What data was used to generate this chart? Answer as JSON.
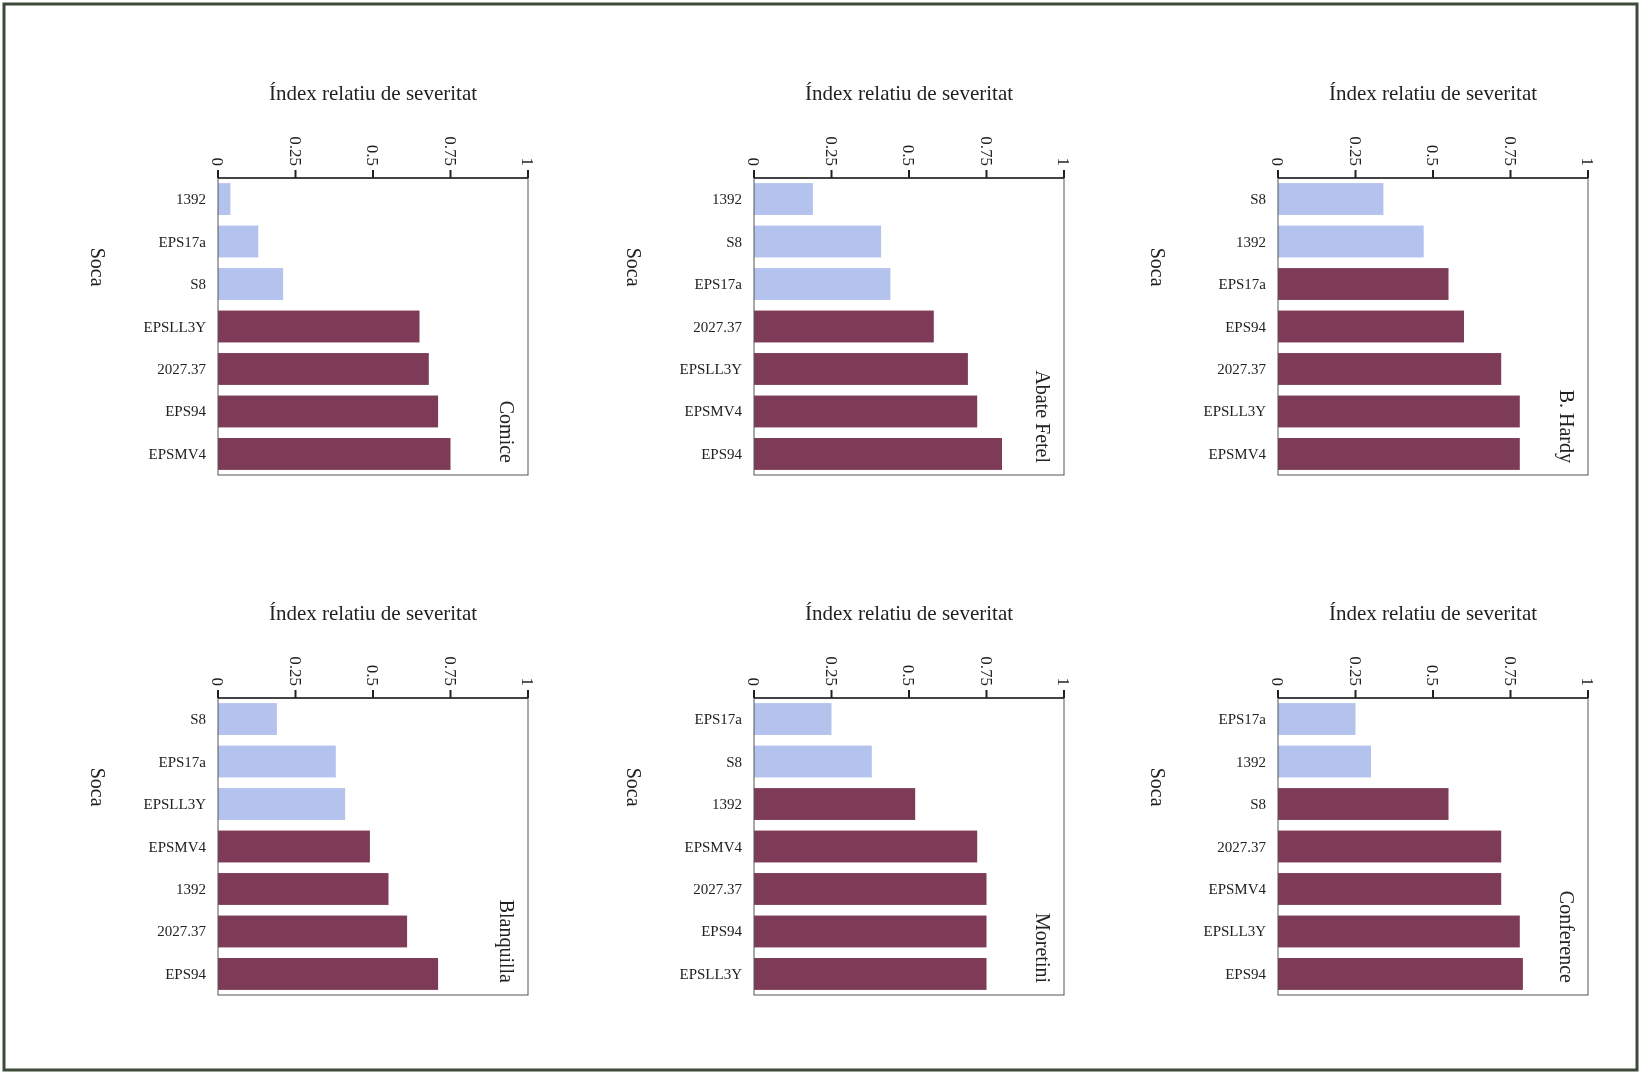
{
  "chart_data": [
    {
      "type": "bar",
      "orientation": "horizontal",
      "title": "Comice",
      "xlabel": "Índex relatiu de severitat",
      "ylabel": "Soca",
      "categories": [
        "1392",
        "EPS17a",
        "S8",
        "EPSLL3Y",
        "2027.37",
        "EPS94",
        "EPSMV4"
      ],
      "values": [
        0.04,
        0.13,
        0.21,
        0.65,
        0.68,
        0.71,
        0.75
      ],
      "colors": [
        "#b4c3ee",
        "#b4c3ee",
        "#b4c3ee",
        "#7e3b57",
        "#7e3b57",
        "#7e3b57",
        "#7e3b57"
      ],
      "xlim": [
        0,
        1
      ],
      "xticks": [
        0,
        0.25,
        0.5,
        0.75,
        1
      ]
    },
    {
      "type": "bar",
      "orientation": "horizontal",
      "title": "Abate Fetel",
      "xlabel": "Índex relatiu de severitat",
      "ylabel": "Soca",
      "categories": [
        "1392",
        "S8",
        "EPS17a",
        "2027.37",
        "EPSLL3Y",
        "EPSMV4",
        "EPS94"
      ],
      "values": [
        0.19,
        0.41,
        0.44,
        0.58,
        0.69,
        0.72,
        0.8
      ],
      "colors": [
        "#b4c3ee",
        "#b4c3ee",
        "#b4c3ee",
        "#7e3b57",
        "#7e3b57",
        "#7e3b57",
        "#7e3b57"
      ],
      "xlim": [
        0,
        1
      ],
      "xticks": [
        0,
        0.25,
        0.5,
        0.75,
        1
      ]
    },
    {
      "type": "bar",
      "orientation": "horizontal",
      "title": "B. Hardy",
      "xlabel": "Índex relatiu de severitat",
      "ylabel": "Soca",
      "categories": [
        "S8",
        "1392",
        "EPS17a",
        "EPS94",
        "2027.37",
        "EPSLL3Y",
        "EPSMV4"
      ],
      "values": [
        0.34,
        0.47,
        0.55,
        0.6,
        0.72,
        0.78,
        0.78
      ],
      "colors": [
        "#b4c3ee",
        "#b4c3ee",
        "#7e3b57",
        "#7e3b57",
        "#7e3b57",
        "#7e3b57",
        "#7e3b57"
      ],
      "xlim": [
        0,
        1
      ],
      "xticks": [
        0,
        0.25,
        0.5,
        0.75,
        1
      ]
    },
    {
      "type": "bar",
      "orientation": "horizontal",
      "title": "Blanquilla",
      "xlabel": "Índex relatiu de severitat",
      "ylabel": "Soca",
      "categories": [
        "S8",
        "EPS17a",
        "EPSLL3Y",
        "EPSMV4",
        "1392",
        "2027.37",
        "EPS94"
      ],
      "values": [
        0.19,
        0.38,
        0.41,
        0.49,
        0.55,
        0.61,
        0.71
      ],
      "colors": [
        "#b4c3ee",
        "#b4c3ee",
        "#b4c3ee",
        "#7e3b57",
        "#7e3b57",
        "#7e3b57",
        "#7e3b57"
      ],
      "xlim": [
        0,
        1
      ],
      "xticks": [
        0,
        0.25,
        0.5,
        0.75,
        1
      ]
    },
    {
      "type": "bar",
      "orientation": "horizontal",
      "title": "Moretini",
      "xlabel": "Índex relatiu de severitat",
      "ylabel": "Soca",
      "categories": [
        "EPS17a",
        "S8",
        "1392",
        "EPSMV4",
        "2027.37",
        "EPS94",
        "EPSLL3Y"
      ],
      "values": [
        0.25,
        0.38,
        0.52,
        0.72,
        0.75,
        0.75,
        0.75
      ],
      "colors": [
        "#b4c3ee",
        "#b4c3ee",
        "#7e3b57",
        "#7e3b57",
        "#7e3b57",
        "#7e3b57",
        "#7e3b57"
      ],
      "xlim": [
        0,
        1
      ],
      "xticks": [
        0,
        0.25,
        0.5,
        0.75,
        1
      ]
    },
    {
      "type": "bar",
      "orientation": "horizontal",
      "title": "Conference",
      "xlabel": "Índex relatiu de severitat",
      "ylabel": "Soca",
      "categories": [
        "EPS17a",
        "1392",
        "S8",
        "2027.37",
        "EPSMV4",
        "EPSLL3Y",
        "EPS94"
      ],
      "values": [
        0.25,
        0.3,
        0.55,
        0.72,
        0.72,
        0.78,
        0.79
      ],
      "colors": [
        "#b4c3ee",
        "#b4c3ee",
        "#7e3b57",
        "#7e3b57",
        "#7e3b57",
        "#7e3b57",
        "#7e3b57"
      ],
      "xlim": [
        0,
        1
      ],
      "xticks": [
        0,
        0.25,
        0.5,
        0.75,
        1
      ]
    }
  ]
}
